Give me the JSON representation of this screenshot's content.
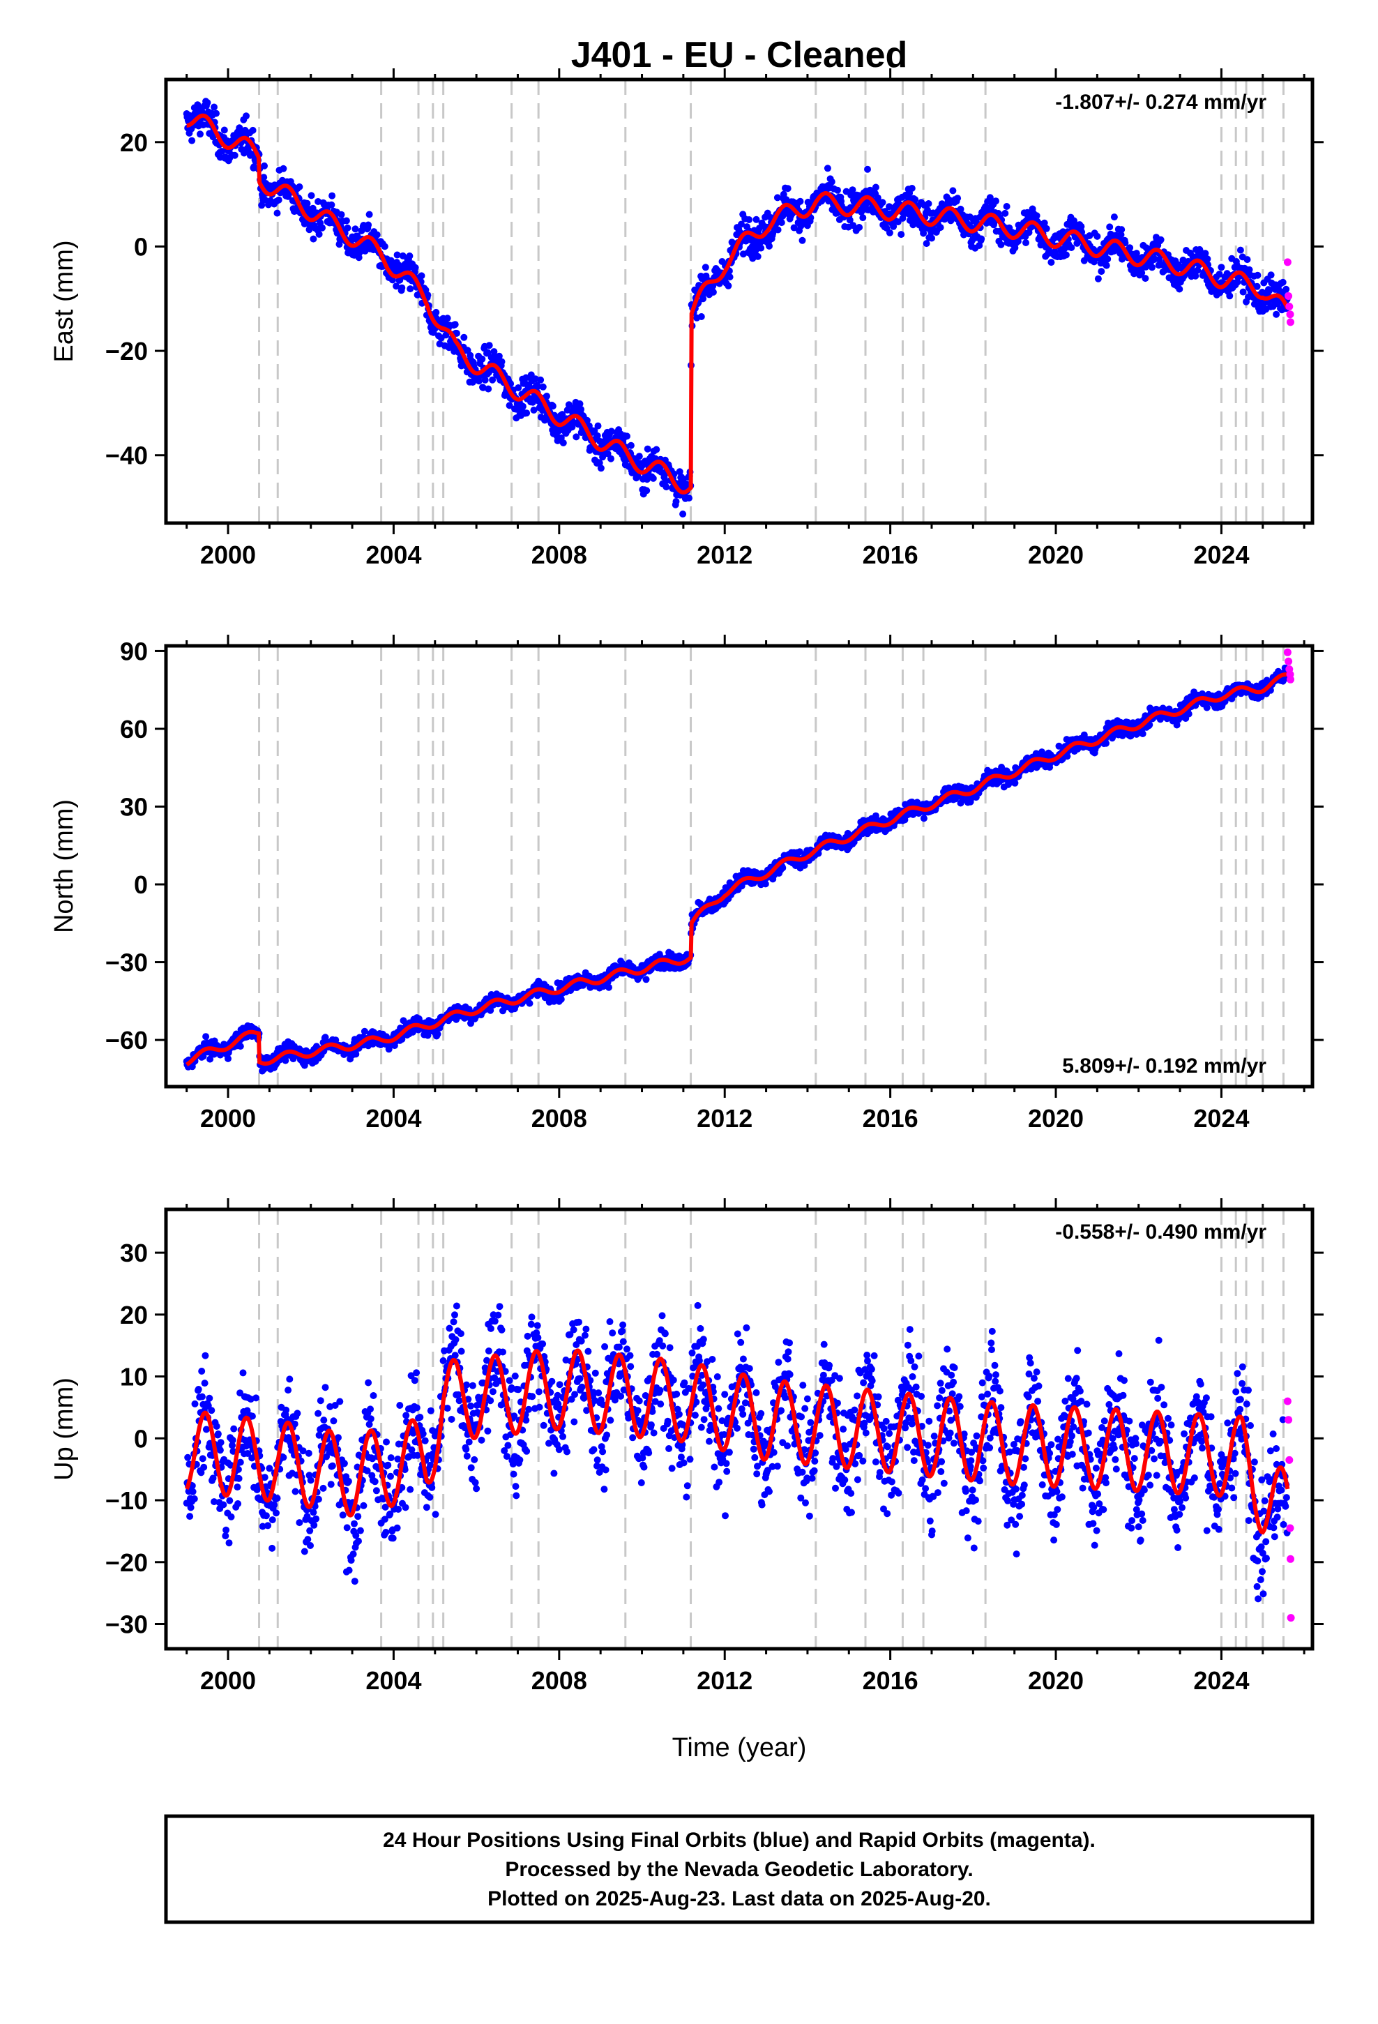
{
  "chart_data": {
    "type": "scatter",
    "title": "J401  - EU - Cleaned",
    "xlabel": "Time (year)",
    "xlim": [
      1998.5,
      2026.2
    ],
    "xticks": [
      2000,
      2004,
      2008,
      2012,
      2016,
      2020,
      2024
    ],
    "colors": {
      "final": "#0000ff",
      "rapid": "#ff00ff",
      "model": "#ff0000",
      "steps": "#c8c8c8"
    },
    "step_lines": [
      2000.75,
      2001.2,
      2003.7,
      2004.6,
      2004.95,
      2005.2,
      2006.85,
      2007.5,
      2009.6,
      2011.18,
      2014.2,
      2015.4,
      2016.3,
      2016.8,
      2018.3,
      2024.0,
      2024.35,
      2024.6,
      2025.0,
      2025.5
    ],
    "panels": [
      {
        "ylabel": "East (mm)",
        "ylim": [
          -53,
          32
        ],
        "yticks": [
          20,
          0,
          -20,
          -40
        ],
        "rate": "-1.807+/- 0.274 mm/yr",
        "rate_position": "top-right",
        "seasonal_amp": 1.9,
        "noise": 1.7,
        "trend": [
          [
            1999.0,
            25.0
          ],
          [
            2000.75,
            17.5
          ],
          [
            2000.76,
            13.0
          ],
          [
            2003.7,
            -1.5
          ],
          [
            2004.8,
            -10.0
          ],
          [
            2005.5,
            -20.0
          ],
          [
            2007.5,
            -30.0
          ],
          [
            2009.6,
            -40.0
          ],
          [
            2011.18,
            -46.0
          ],
          [
            2011.19,
            -13.0
          ],
          [
            2012.0,
            -3.0
          ],
          [
            2013.0,
            4.5
          ],
          [
            2014.2,
            8.5
          ],
          [
            2015.5,
            7.5
          ],
          [
            2017.0,
            6.0
          ],
          [
            2019.0,
            3.5
          ],
          [
            2021.0,
            0.0
          ],
          [
            2023.0,
            -3.5
          ],
          [
            2024.0,
            -6.0
          ],
          [
            2025.0,
            -8.0
          ],
          [
            2025.6,
            -13.0
          ]
        ],
        "rapid": [
          [
            2025.6,
            -3.0
          ],
          [
            2025.62,
            -9.5
          ],
          [
            2025.64,
            -11.5
          ],
          [
            2025.66,
            -13.0
          ],
          [
            2025.67,
            -14.5
          ]
        ]
      },
      {
        "ylabel": "North (mm)",
        "ylim": [
          -78,
          92
        ],
        "yticks": [
          90,
          60,
          30,
          0,
          -30,
          -60
        ],
        "rate": "5.809+/- 0.192 mm/yr",
        "rate_position": "bottom-right",
        "seasonal_amp": 1.6,
        "noise": 1.5,
        "trend": [
          [
            1999.0,
            -68.0
          ],
          [
            2000.75,
            -57.0
          ],
          [
            2000.76,
            -68.0
          ],
          [
            2003.7,
            -60.0
          ],
          [
            2006.0,
            -48.0
          ],
          [
            2008.0,
            -40.0
          ],
          [
            2011.18,
            -28.0
          ],
          [
            2011.19,
            -15.0
          ],
          [
            2012.0,
            -3.0
          ],
          [
            2014.0,
            12.0
          ],
          [
            2016.0,
            25.0
          ],
          [
            2018.0,
            37.0
          ],
          [
            2020.0,
            50.0
          ],
          [
            2022.0,
            62.0
          ],
          [
            2024.0,
            73.0
          ],
          [
            2025.0,
            76.0
          ],
          [
            2025.6,
            80.0
          ]
        ],
        "rapid": [
          [
            2025.6,
            89.5
          ],
          [
            2025.62,
            86.0
          ],
          [
            2025.64,
            83.0
          ],
          [
            2025.66,
            81.0
          ],
          [
            2025.67,
            79.0
          ]
        ]
      },
      {
        "ylabel": "Up (mm)",
        "ylim": [
          -34,
          37
        ],
        "yticks": [
          30,
          20,
          10,
          0,
          -10,
          -20,
          -30
        ],
        "rate": "-0.558+/- 0.490 mm/yr",
        "rate_position": "top-right",
        "seasonal_amp": 6.5,
        "noise": 4.5,
        "trend": [
          [
            1999.0,
            -2.0
          ],
          [
            2001.5,
            -4.0
          ],
          [
            2003.0,
            -6.0
          ],
          [
            2004.8,
            -3.0
          ],
          [
            2005.2,
            6.0
          ],
          [
            2008.0,
            8.0
          ],
          [
            2011.0,
            6.0
          ],
          [
            2013.0,
            3.0
          ],
          [
            2016.0,
            1.0
          ],
          [
            2019.0,
            -1.0
          ],
          [
            2022.0,
            -2.0
          ],
          [
            2024.5,
            -3.0
          ],
          [
            2025.0,
            -9.0
          ],
          [
            2025.6,
            -12.0
          ]
        ],
        "rapid": [
          [
            2025.6,
            6.0
          ],
          [
            2025.62,
            3.0
          ],
          [
            2025.64,
            -3.5
          ],
          [
            2025.66,
            -14.5
          ],
          [
            2025.67,
            -19.5
          ],
          [
            2025.68,
            -29.0
          ]
        ]
      }
    ]
  },
  "footer": {
    "line1": "24 Hour Positions Using Final Orbits (blue) and Rapid Orbits (magenta).",
    "line2": "Processed by the Nevada Geodetic Laboratory.",
    "line3": "Plotted on 2025-Aug-23. Last data on 2025-Aug-20."
  }
}
